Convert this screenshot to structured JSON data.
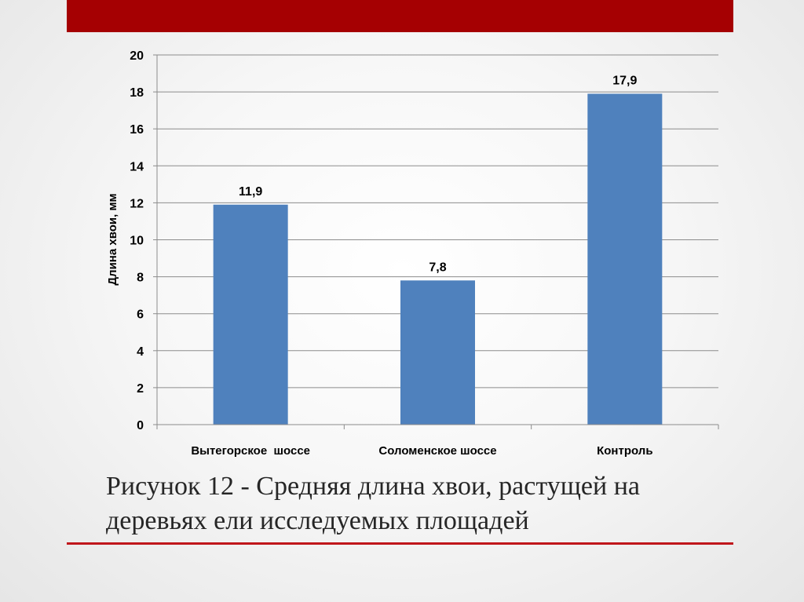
{
  "caption": {
    "line1": "Рисунок 12 - Средняя длина хвои, растущей на",
    "line2": "деревьях ели исследуемых площадей"
  },
  "colors": {
    "band": "#a50002",
    "rule": "#c0161b",
    "bar": "#4f81bd"
  },
  "chart_data": {
    "type": "bar",
    "title": "",
    "xlabel": "",
    "ylabel": "Длина хвои, мм",
    "categories": [
      "Вытегорское  шоссе",
      "Соломенское шоссе",
      "Контроль"
    ],
    "values": [
      11.9,
      7.8,
      17.9
    ],
    "data_labels": [
      "11,9",
      "7,8",
      "17,9"
    ],
    "ylim": [
      0,
      20
    ],
    "yticks": [
      0,
      2,
      4,
      6,
      8,
      10,
      12,
      14,
      16,
      18,
      20
    ],
    "grid": true,
    "legend": "none"
  }
}
